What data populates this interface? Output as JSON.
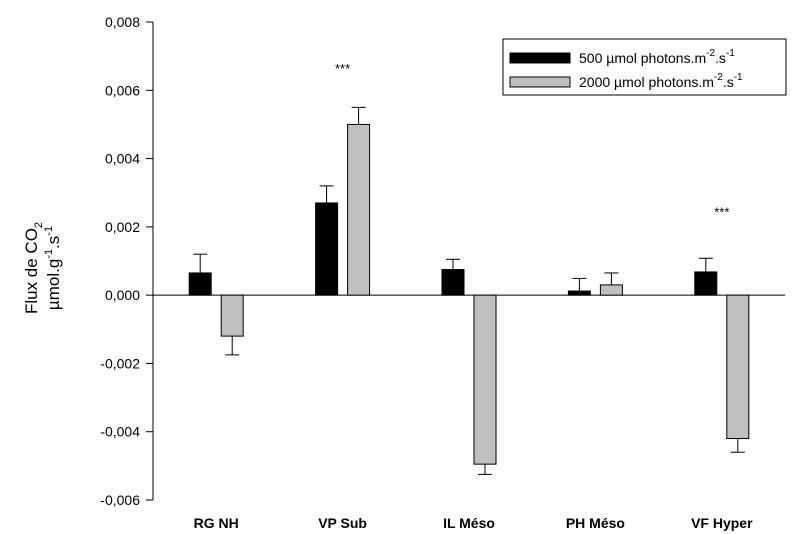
{
  "chart_data": {
    "type": "bar",
    "categories": [
      "RG NH",
      "VP Sub",
      "IL Méso",
      "PH Méso",
      "VF Hyper"
    ],
    "ylim": [
      -0.006,
      0.008
    ],
    "yticks": [
      "0,008",
      "0,006",
      "0,004",
      "0,002",
      "0,000",
      "-0,002",
      "-0,004",
      "-0,006"
    ],
    "ytick_values": [
      0.008,
      0.006,
      0.004,
      0.002,
      0.0,
      -0.002,
      -0.004,
      -0.006
    ],
    "ylabel_line1": "Flux de CO",
    "ylabel_line1_sub": "2",
    "ylabel_line2": "µmol.g",
    "ylabel_line2_sup1": "-1",
    "ylabel_line2_mid": ".s",
    "ylabel_line2_sup2": "-1",
    "series": [
      {
        "name": "500 µmol photons.m-2.s-1",
        "legend_main": "500 µmol photons.m",
        "legend_sup1": "-2",
        "legend_mid": ".s",
        "legend_sup2": "-1",
        "color": "#000000",
        "values": [
          0.00065,
          0.0027,
          0.00075,
          0.00012,
          0.00068
        ],
        "errors": [
          0.00055,
          0.0005,
          0.0003,
          0.00037,
          0.0004
        ]
      },
      {
        "name": "2000 µmol photons.m-2.s-1",
        "legend_main": "2000 µmol photons.m",
        "legend_sup1": "-2",
        "legend_mid": ".s",
        "legend_sup2": "-1",
        "color": "#c0c0c0",
        "values": [
          -0.0012,
          0.005,
          -0.00495,
          0.0003,
          -0.0042
        ],
        "errors": [
          0.00055,
          0.0005,
          0.0003,
          0.00035,
          0.0004
        ]
      }
    ],
    "annotations": [
      {
        "category_index": 1,
        "text": "***",
        "y": 0.0065
      },
      {
        "category_index": 4,
        "text": "***",
        "y": 0.0023
      }
    ],
    "legend_position": "top-right",
    "grid": false
  }
}
